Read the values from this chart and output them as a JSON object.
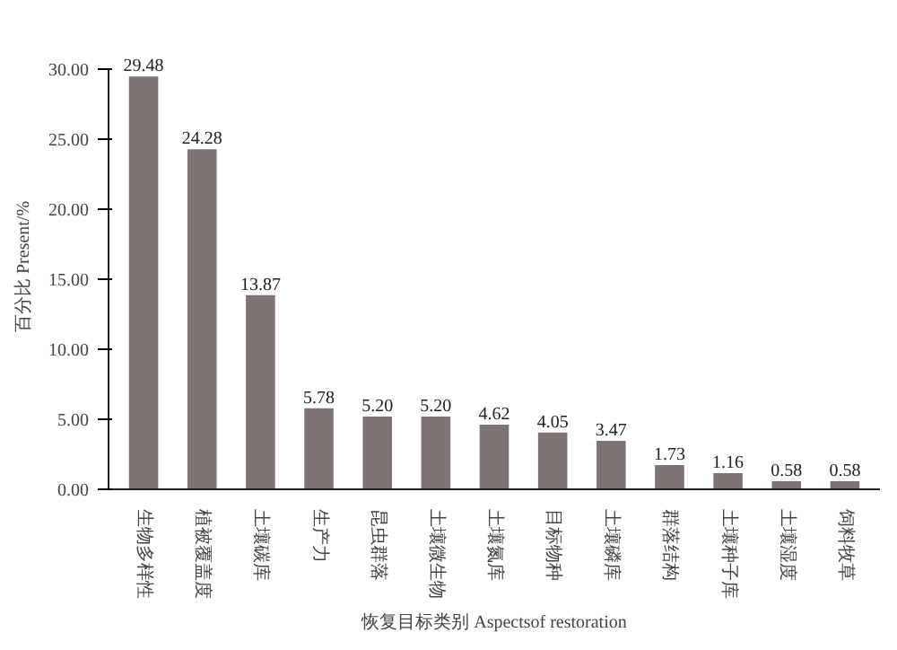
{
  "chart_data": {
    "type": "bar",
    "xlabel": "恢复目标类别 Aspectsof restoration",
    "ylabel": "百分比 Present/%",
    "categories": [
      "生物多样性",
      "植被覆盖度",
      "土壤碳库",
      "生产力",
      "昆虫群落",
      "土壤微生物",
      "土壤氮库",
      "目标物种",
      "土壤磷库",
      "群落结构",
      "土壤种子库",
      "土壤湿度",
      "饲料牧草"
    ],
    "values": [
      29.48,
      24.28,
      13.87,
      5.78,
      5.2,
      5.2,
      4.62,
      4.05,
      3.47,
      1.73,
      1.16,
      0.58,
      0.58
    ],
    "value_labels": [
      "29.48",
      "24.28",
      "13.87",
      "5.78",
      "5.20",
      "5.20",
      "4.62",
      "4.05",
      "3.47",
      "1.73",
      "1.16",
      "0.58",
      "0.58"
    ],
    "color": "#7f7474",
    "ylim": [
      0,
      30
    ],
    "yticks": [
      {
        "value": 0,
        "label": "0.00"
      },
      {
        "value": 5,
        "label": "5.00"
      },
      {
        "value": 10,
        "label": "10.00"
      },
      {
        "value": 15,
        "label": "15.00"
      },
      {
        "value": 20,
        "label": "20.00"
      },
      {
        "value": 25,
        "label": "25.00"
      },
      {
        "value": 30,
        "label": "30.00"
      }
    ],
    "grid": false
  }
}
